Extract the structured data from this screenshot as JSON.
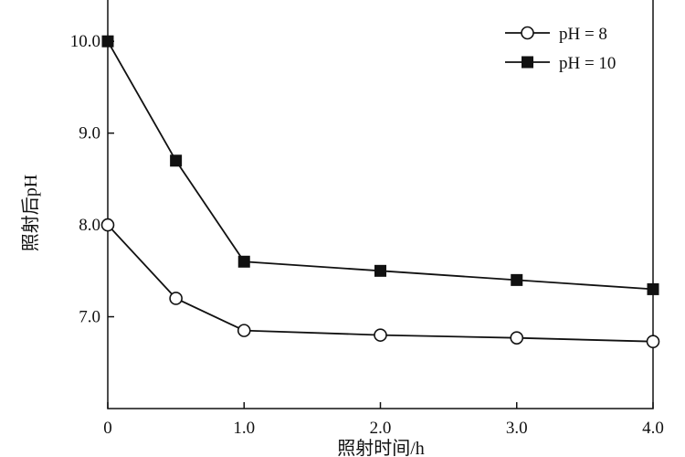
{
  "chart_data": {
    "type": "line",
    "title": "",
    "xlabel": "照射时间/h",
    "ylabel": "照射后pH",
    "xlim": [
      0,
      4.0
    ],
    "ylim": [
      6.0,
      10.45
    ],
    "x_ticks": [
      0,
      1.0,
      2.0,
      3.0,
      4.0
    ],
    "x_tick_labels": [
      "0",
      "1.0",
      "2.0",
      "3.0",
      "4.0"
    ],
    "y_ticks": [
      7.0,
      8.0,
      9.0,
      10.0
    ],
    "y_tick_labels": [
      "7.0",
      "8.0",
      "9.0",
      "10.0"
    ],
    "grid": false,
    "legend_position": "top-right",
    "series": [
      {
        "name": "pH = 8",
        "marker": "open-circle",
        "x": [
          0,
          0.5,
          1.0,
          2.0,
          3.0,
          4.0
        ],
        "y": [
          8.0,
          7.2,
          6.85,
          6.8,
          6.77,
          6.73
        ]
      },
      {
        "name": "pH = 10",
        "marker": "filled-square",
        "x": [
          0,
          0.5,
          1.0,
          2.0,
          3.0,
          4.0
        ],
        "y": [
          10.0,
          8.7,
          7.6,
          7.5,
          7.4,
          7.3
        ]
      }
    ]
  }
}
